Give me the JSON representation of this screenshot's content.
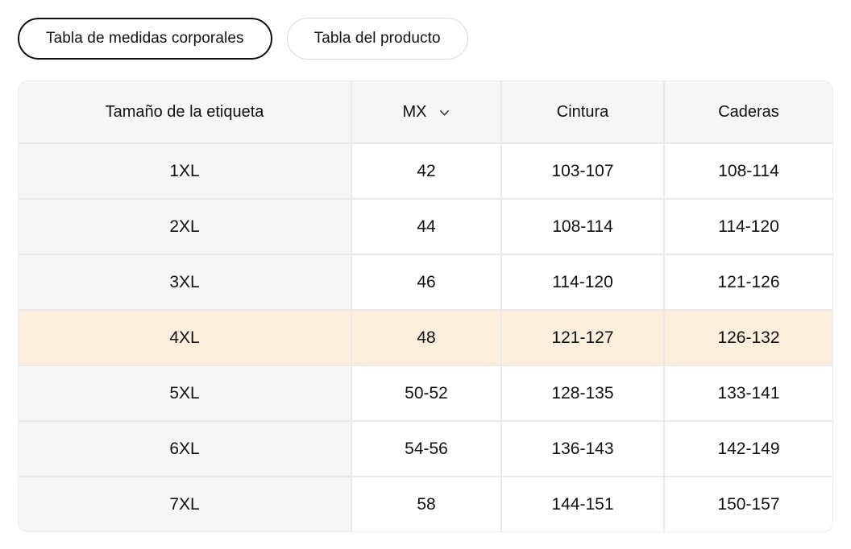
{
  "tabs": [
    {
      "label": "Tabla de medidas corporales",
      "active": true
    },
    {
      "label": "Tabla del producto",
      "active": false
    }
  ],
  "table": {
    "headers": [
      "Tamaño de la etiqueta",
      "MX",
      "Cintura",
      "Caderas"
    ],
    "size_system_dropdown": {
      "selected": "MX",
      "chevron_icon": "chevron-down"
    },
    "rows": [
      {
        "size": "1XL",
        "mx": "42",
        "cintura": "103-107",
        "caderas": "108-114",
        "highlighted": false
      },
      {
        "size": "2XL",
        "mx": "44",
        "cintura": "108-114",
        "caderas": "114-120",
        "highlighted": false
      },
      {
        "size": "3XL",
        "mx": "46",
        "cintura": "114-120",
        "caderas": "121-126",
        "highlighted": false
      },
      {
        "size": "4XL",
        "mx": "48",
        "cintura": "121-127",
        "caderas": "126-132",
        "highlighted": true
      },
      {
        "size": "5XL",
        "mx": "50-52",
        "cintura": "128-135",
        "caderas": "133-141",
        "highlighted": false
      },
      {
        "size": "6XL",
        "mx": "54-56",
        "cintura": "136-143",
        "caderas": "142-149",
        "highlighted": false
      },
      {
        "size": "7XL",
        "mx": "58",
        "cintura": "144-151",
        "caderas": "150-157",
        "highlighted": false
      }
    ]
  },
  "colors": {
    "highlight": "#fbeedd",
    "header_bg": "#f6f6f6",
    "grid_line": "#e9e9e9",
    "outer_border": "#ececec",
    "active_tab_border": "#111111",
    "inactive_tab_border": "#d9d9d9"
  }
}
